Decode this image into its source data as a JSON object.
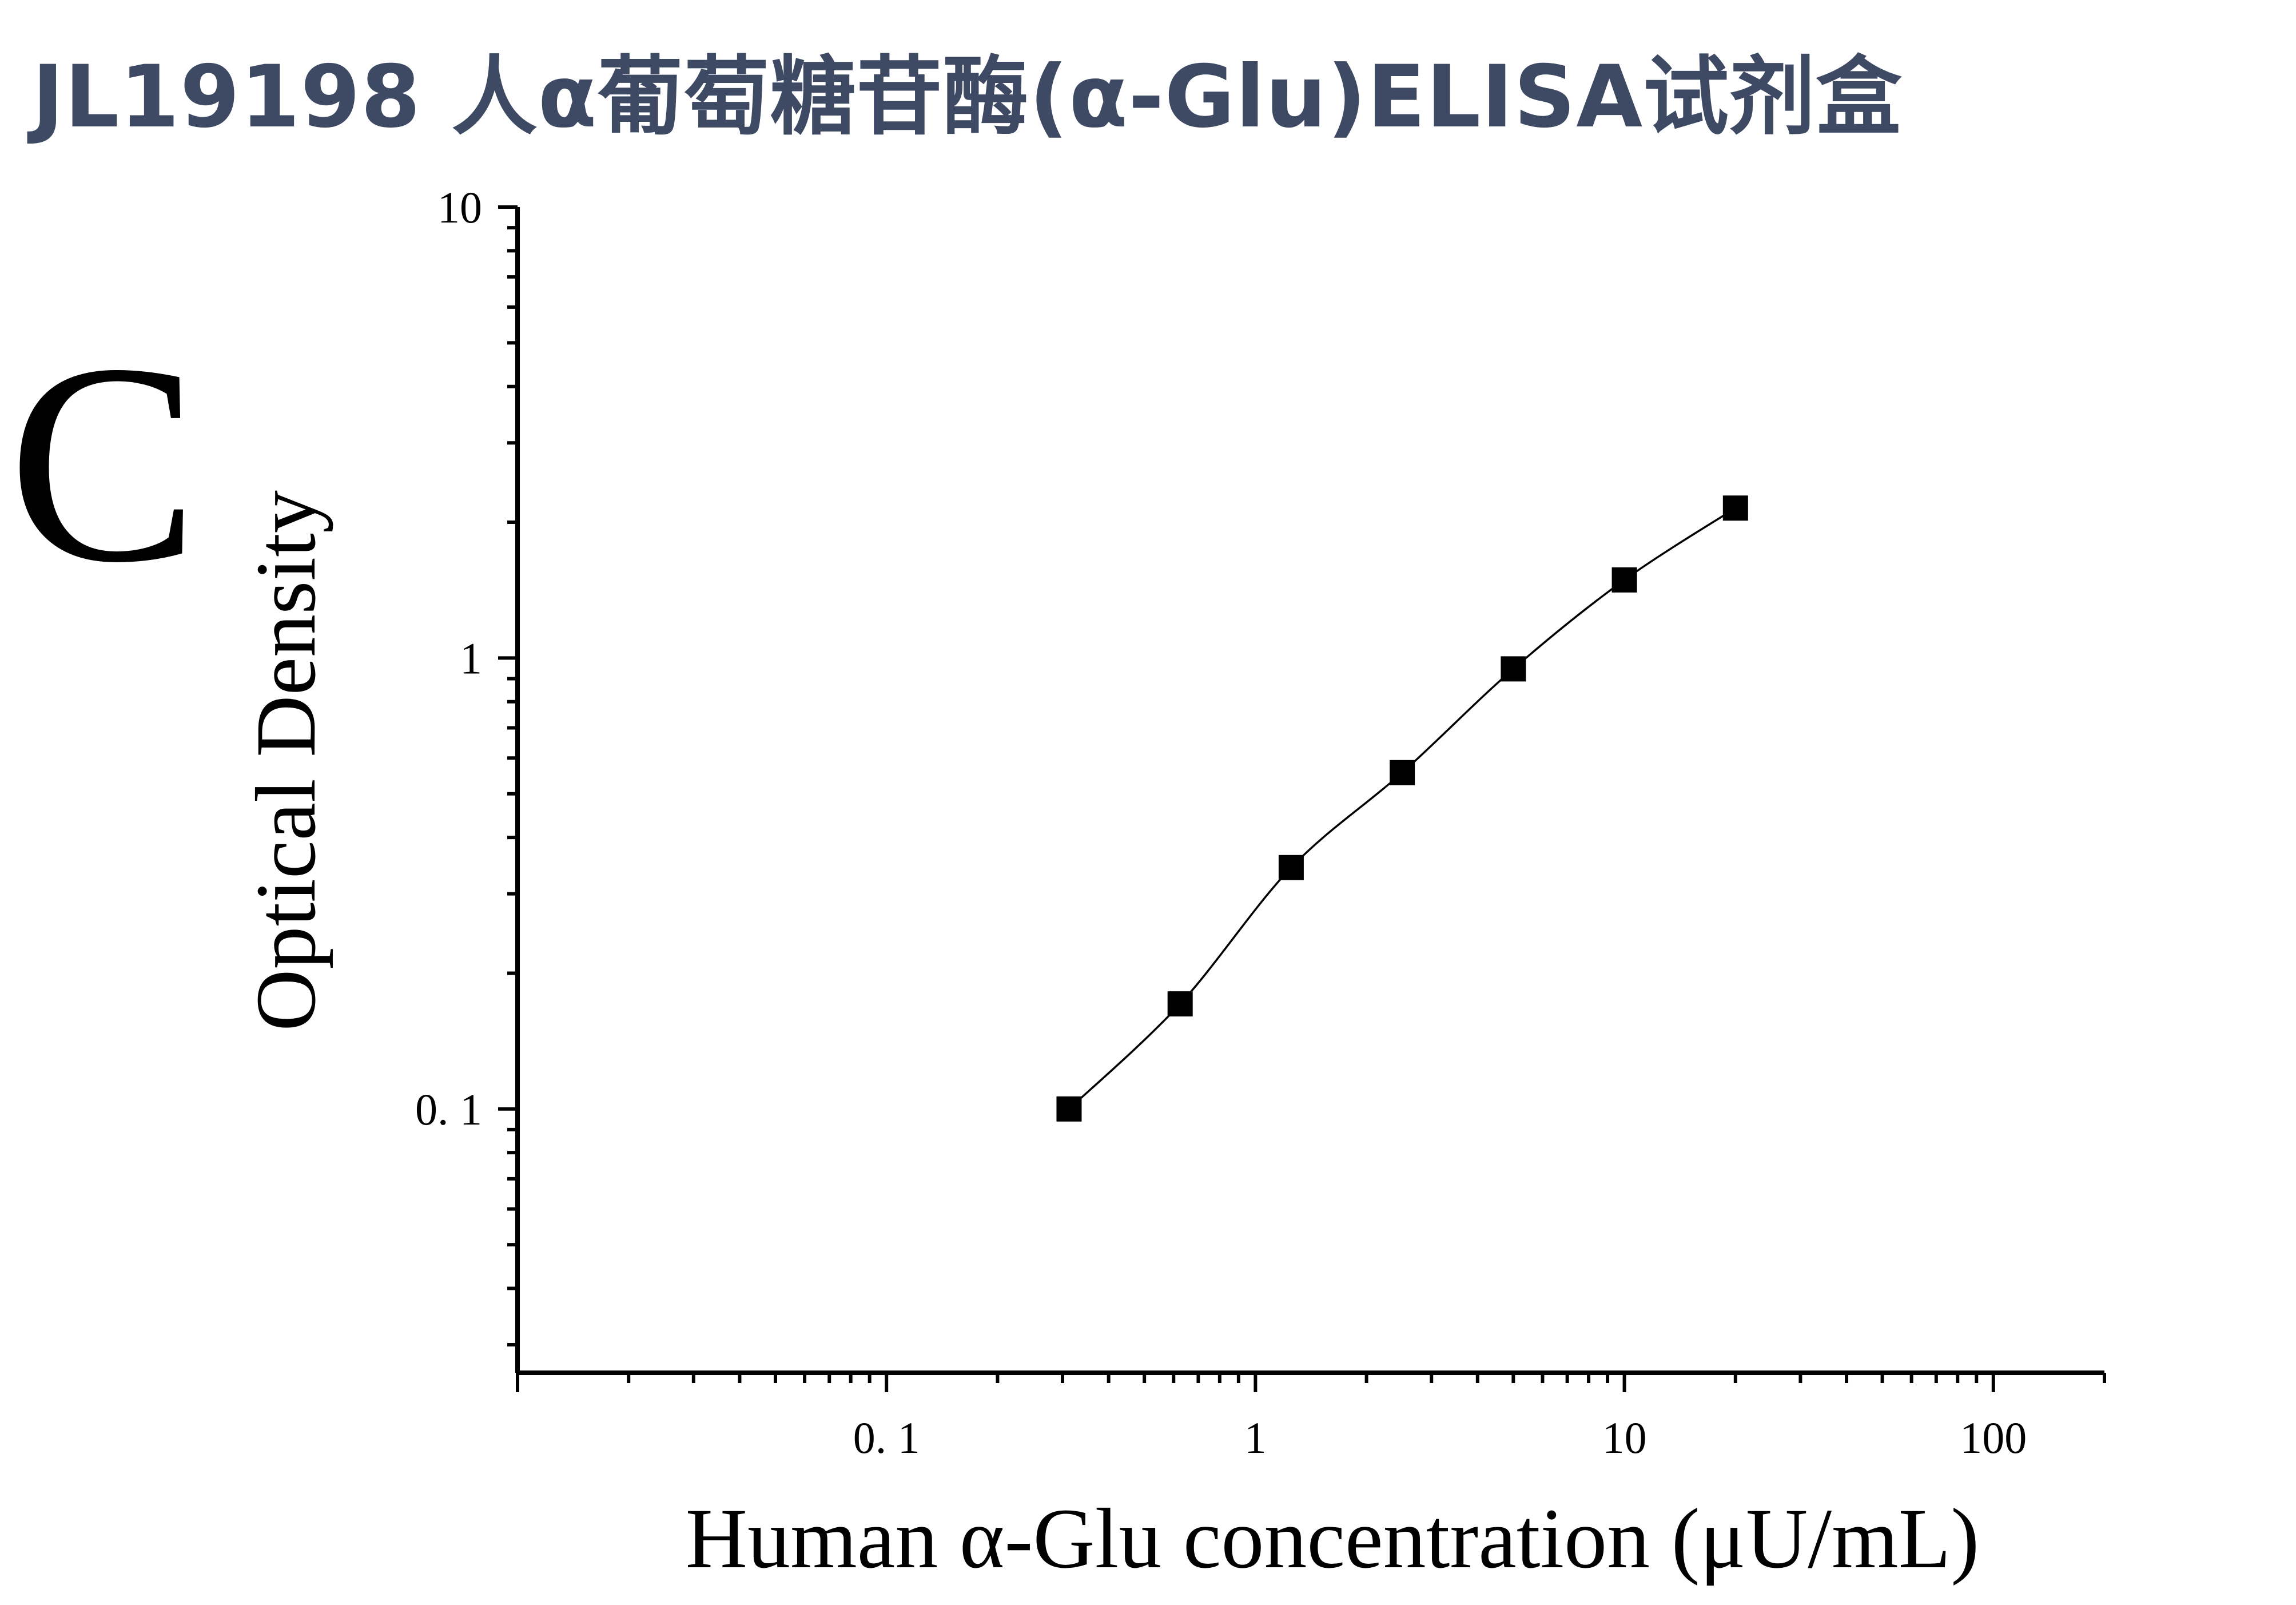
{
  "header": {
    "title": "JL19198 人α葡萄糖苷酶(α-Glu)ELISA试剂盒",
    "panel_label": "C"
  },
  "chart_data": {
    "type": "scatter",
    "title": "",
    "xlabel": "Human α-Glu concentration (μU/mL)",
    "ylabel": "Optical Density",
    "x_scale": "log",
    "y_scale": "log",
    "xlim": [
      0.01,
      200
    ],
    "ylim": [
      0.026,
      10
    ],
    "x_ticks": [
      0.1,
      1,
      10,
      100
    ],
    "x_tick_labels": [
      "0. 1",
      "1",
      "10",
      "100"
    ],
    "y_ticks": [
      0.1,
      1,
      10
    ],
    "y_tick_labels": [
      "0. 1",
      "1",
      "10"
    ],
    "grid": false,
    "legend": "none",
    "series": [
      {
        "marker": "square",
        "line": "smooth",
        "color": "#000000",
        "x": [
          0.3125,
          0.625,
          1.25,
          2.5,
          5,
          10,
          20
        ],
        "y": [
          0.1,
          0.171,
          0.343,
          0.557,
          0.946,
          1.49,
          2.15
        ]
      }
    ]
  }
}
